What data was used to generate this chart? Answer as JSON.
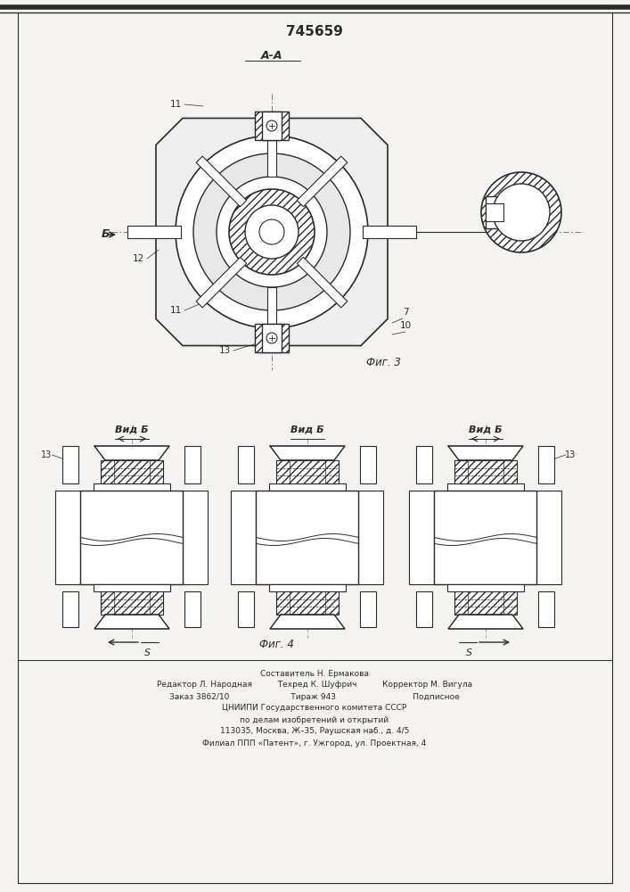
{
  "patent_number": "745659",
  "title_top": "А-А",
  "fig3_label": "Фиг. 3",
  "fig4_label": "Фиг. 4",
  "vid_b_label": "Вид Б",
  "background_color": "#f5f3ef",
  "line_color": "#2a2a2a",
  "footer_lines": [
    "Составитель Н. Ермакова",
    "Редактор Л. Народная          Техред К. Шуфрич          Корректор М. Вигула",
    "Заказ 3862/10                        Тираж 943                              Подписное",
    "ЦНИИПИ Государственного комитета СССР",
    "по делам изобретений и открытий",
    "113035, Москва, Ж–35, Раушская наб., д. 4/5",
    "Филиал ППП «Патент», г. Ужгород, ул. Проектная, 4"
  ]
}
